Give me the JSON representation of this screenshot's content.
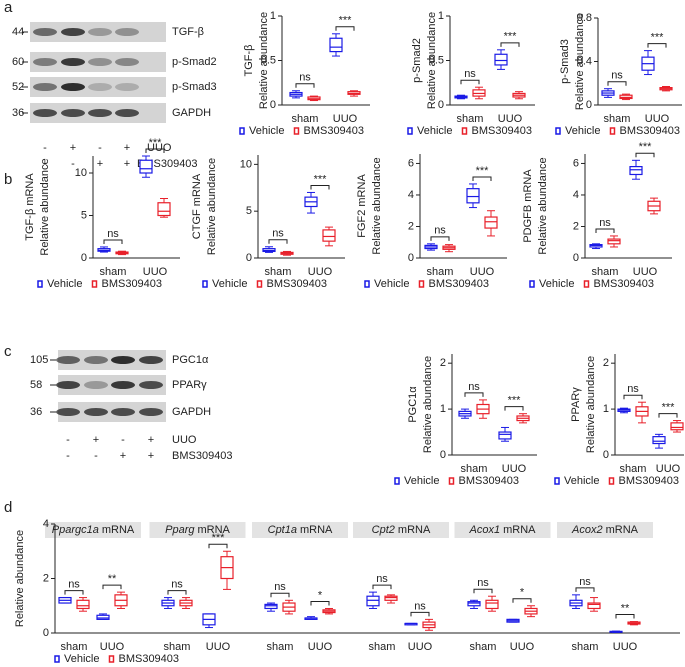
{
  "panel_labels": [
    "a",
    "b",
    "c",
    "d"
  ],
  "blots": [
    {
      "markers": [
        44,
        60,
        52,
        36
      ],
      "proteins": [
        "TGF-β",
        "p-Smad2",
        "p-Smad3",
        "GAPDH"
      ],
      "conditions": [
        {
          "name": "UUO",
          "signs": [
            "-",
            "+",
            "-",
            "+"
          ]
        },
        {
          "name": "BMS309403",
          "signs": [
            "-",
            "-",
            "+",
            "+"
          ]
        }
      ]
    },
    {
      "markers": [
        105,
        58,
        36
      ],
      "proteins": [
        "PGC1α",
        "PPARγ",
        "GAPDH"
      ],
      "conditions": [
        {
          "name": "UUO",
          "signs": [
            "-",
            "+",
            "-",
            "+"
          ]
        },
        {
          "name": "BMS309403",
          "signs": [
            "-",
            "-",
            "+",
            "+"
          ]
        }
      ]
    }
  ],
  "chart_data": [
    {
      "type": "box",
      "ylabel": [
        "TGF-β",
        "Relative abundance"
      ],
      "categories": [
        "sham",
        "UUO"
      ],
      "ylim": [
        0,
        1
      ],
      "yticks": [
        0,
        0.5,
        1
      ],
      "significance": [
        "ns",
        "***"
      ],
      "series": [
        {
          "name": "Vehicle",
          "color": "#1a1ae6",
          "min": [
            0.08,
            0.55
          ],
          "q1": [
            0.1,
            0.6
          ],
          "median": [
            0.12,
            0.65
          ],
          "q3": [
            0.14,
            0.75
          ],
          "max": [
            0.16,
            0.8
          ]
        },
        {
          "name": "BMS309403",
          "color": "#e8202a",
          "min": [
            0.05,
            0.1
          ],
          "q1": [
            0.06,
            0.12
          ],
          "median": [
            0.07,
            0.13
          ],
          "q3": [
            0.09,
            0.15
          ],
          "max": [
            0.1,
            0.16
          ]
        }
      ]
    },
    {
      "type": "box",
      "ylabel": [
        "p-Smad2",
        "Relative abundance"
      ],
      "categories": [
        "sham",
        "UUO"
      ],
      "ylim": [
        0,
        1
      ],
      "yticks": [
        0,
        0.5,
        1
      ],
      "significance": [
        "ns",
        "***"
      ],
      "series": [
        {
          "name": "Vehicle",
          "color": "#1a1ae6",
          "min": [
            0.07,
            0.4
          ],
          "q1": [
            0.08,
            0.45
          ],
          "median": [
            0.09,
            0.5
          ],
          "q3": [
            0.1,
            0.57
          ],
          "max": [
            0.11,
            0.62
          ]
        },
        {
          "name": "BMS309403",
          "color": "#e8202a",
          "min": [
            0.07,
            0.07
          ],
          "q1": [
            0.1,
            0.09
          ],
          "median": [
            0.13,
            0.11
          ],
          "q3": [
            0.17,
            0.13
          ],
          "max": [
            0.2,
            0.15
          ]
        }
      ]
    },
    {
      "type": "box",
      "ylabel": [
        "p-Smad3",
        "Relative abundance"
      ],
      "categories": [
        "sham",
        "UUO"
      ],
      "ylim": [
        0,
        0.8
      ],
      "yticks": [
        0,
        0.4,
        0.8
      ],
      "significance": [
        "ns",
        "***"
      ],
      "series": [
        {
          "name": "Vehicle",
          "color": "#1a1ae6",
          "min": [
            0.07,
            0.28
          ],
          "q1": [
            0.09,
            0.32
          ],
          "median": [
            0.11,
            0.38
          ],
          "q3": [
            0.13,
            0.44
          ],
          "max": [
            0.15,
            0.5
          ]
        },
        {
          "name": "BMS309403",
          "color": "#e8202a",
          "min": [
            0.05,
            0.13
          ],
          "q1": [
            0.06,
            0.14
          ],
          "median": [
            0.07,
            0.15
          ],
          "q3": [
            0.09,
            0.16
          ],
          "max": [
            0.1,
            0.17
          ]
        }
      ]
    },
    {
      "type": "box",
      "ylabel": [
        "TGF-β mRNA",
        "Relative abundance"
      ],
      "categories": [
        "sham",
        "UUO"
      ],
      "ylim": [
        0,
        12
      ],
      "yticks": [
        0,
        5,
        10
      ],
      "significance": [
        "ns",
        "***"
      ],
      "series": [
        {
          "name": "Vehicle",
          "color": "#1a1ae6",
          "min": [
            0.7,
            9.5
          ],
          "q1": [
            0.8,
            10
          ],
          "median": [
            0.9,
            10.5
          ],
          "q3": [
            1.1,
            11.5
          ],
          "max": [
            1.3,
            12
          ]
        },
        {
          "name": "BMS309403",
          "color": "#e8202a",
          "min": [
            0.4,
            4.8
          ],
          "q1": [
            0.5,
            5
          ],
          "median": [
            0.6,
            5.5
          ],
          "q3": [
            0.7,
            6.5
          ],
          "max": [
            0.8,
            7
          ]
        }
      ]
    },
    {
      "type": "box",
      "ylabel": [
        "CTGF mRNA",
        "Relative abundance"
      ],
      "categories": [
        "sham",
        "UUO"
      ],
      "ylim": [
        0,
        11
      ],
      "yticks": [
        0,
        5,
        10
      ],
      "significance": [
        "ns",
        "***"
      ],
      "series": [
        {
          "name": "Vehicle",
          "color": "#1a1ae6",
          "min": [
            0.6,
            4.8
          ],
          "q1": [
            0.7,
            5.5
          ],
          "median": [
            0.8,
            6
          ],
          "q3": [
            1,
            6.5
          ],
          "max": [
            1.2,
            7
          ]
        },
        {
          "name": "BMS309403",
          "color": "#e8202a",
          "min": [
            0.3,
            1.3
          ],
          "q1": [
            0.4,
            1.8
          ],
          "median": [
            0.5,
            2.3
          ],
          "q3": [
            0.6,
            3
          ],
          "max": [
            0.7,
            3.3
          ]
        }
      ]
    },
    {
      "type": "box",
      "ylabel": [
        "FGF2 mRNA",
        "Relative abundance"
      ],
      "categories": [
        "sham",
        "UUO"
      ],
      "ylim": [
        0,
        6.6
      ],
      "yticks": [
        0,
        2,
        4,
        6
      ],
      "significance": [
        "ns",
        "***"
      ],
      "series": [
        {
          "name": "Vehicle",
          "color": "#1a1ae6",
          "min": [
            0.5,
            3.2
          ],
          "q1": [
            0.6,
            3.5
          ],
          "median": [
            0.7,
            3.9
          ],
          "q3": [
            0.8,
            4.4
          ],
          "max": [
            0.9,
            4.7
          ]
        },
        {
          "name": "BMS309403",
          "color": "#e8202a",
          "min": [
            0.4,
            1.4
          ],
          "q1": [
            0.55,
            1.9
          ],
          "median": [
            0.65,
            2.3
          ],
          "q3": [
            0.75,
            2.6
          ],
          "max": [
            0.85,
            3
          ]
        }
      ]
    },
    {
      "type": "box",
      "ylabel": [
        "PDGFB mRNA",
        "Relative abundance"
      ],
      "categories": [
        "sham",
        "UUO"
      ],
      "ylim": [
        0,
        6.6
      ],
      "yticks": [
        0,
        2,
        4,
        6
      ],
      "significance": [
        "ns",
        "***"
      ],
      "series": [
        {
          "name": "Vehicle",
          "color": "#1a1ae6",
          "min": [
            0.6,
            5
          ],
          "q1": [
            0.7,
            5.3
          ],
          "median": [
            0.8,
            5.6
          ],
          "q3": [
            0.85,
            5.8
          ],
          "max": [
            0.9,
            6.2
          ]
        },
        {
          "name": "BMS309403",
          "color": "#e8202a",
          "min": [
            0.7,
            2.8
          ],
          "q1": [
            0.9,
            3
          ],
          "median": [
            1.1,
            3.3
          ],
          "q3": [
            1.2,
            3.6
          ],
          "max": [
            1.4,
            3.8
          ]
        }
      ]
    },
    {
      "type": "box",
      "ylabel": [
        "PGC1α",
        "Relative abundance"
      ],
      "categories": [
        "sham",
        "UUO"
      ],
      "ylim": [
        0,
        2.2
      ],
      "yticks": [
        0,
        1,
        2
      ],
      "significance": [
        "ns",
        "***"
      ],
      "series": [
        {
          "name": "Vehicle",
          "color": "#1a1ae6",
          "min": [
            0.8,
            0.3
          ],
          "q1": [
            0.85,
            0.35
          ],
          "median": [
            0.9,
            0.45
          ],
          "q3": [
            0.95,
            0.5
          ],
          "max": [
            1,
            0.6
          ]
        },
        {
          "name": "BMS309403",
          "color": "#e8202a",
          "min": [
            0.8,
            0.7
          ],
          "q1": [
            0.9,
            0.75
          ],
          "median": [
            1,
            0.8
          ],
          "q3": [
            1.1,
            0.85
          ],
          "max": [
            1.2,
            0.9
          ]
        }
      ]
    },
    {
      "type": "box",
      "ylabel": [
        "PPARγ",
        "Relative abundance"
      ],
      "categories": [
        "sham",
        "UUO"
      ],
      "ylim": [
        0,
        2.2
      ],
      "yticks": [
        0,
        1,
        2
      ],
      "significance": [
        "ns",
        "***"
      ],
      "series": [
        {
          "name": "Vehicle",
          "color": "#1a1ae6",
          "min": [
            0.92,
            0.15
          ],
          "q1": [
            0.95,
            0.25
          ],
          "median": [
            0.98,
            0.3
          ],
          "q3": [
            1,
            0.4
          ],
          "max": [
            1.02,
            0.45
          ]
        },
        {
          "name": "BMS309403",
          "color": "#e8202a",
          "min": [
            0.7,
            0.5
          ],
          "q1": [
            0.85,
            0.55
          ],
          "median": [
            0.95,
            0.6
          ],
          "q3": [
            1.05,
            0.7
          ],
          "max": [
            1.15,
            0.75
          ]
        }
      ]
    },
    {
      "type": "box",
      "ylabel": [
        "Relative abundance"
      ],
      "groups": [
        {
          "gene": "Ppargc1a",
          "unit": "mRNA"
        },
        {
          "gene": "Pparg",
          "unit": "mRNA"
        },
        {
          "gene": "Cpt1a",
          "unit": "mRNA"
        },
        {
          "gene": "Cpt2",
          "unit": "mRNA"
        },
        {
          "gene": "Acox1",
          "unit": "mRNA"
        },
        {
          "gene": "Acox2",
          "unit": "mRNA"
        }
      ],
      "categories": [
        "sham",
        "UUO",
        "sham",
        "UUO",
        "sham",
        "UUO",
        "sham",
        "UUO",
        "sham",
        "UUO",
        "sham",
        "UUO"
      ],
      "ylim": [
        0,
        4
      ],
      "yticks": [
        0,
        2,
        4
      ],
      "significance": [
        "ns",
        "**",
        "ns",
        "***",
        "ns",
        "*",
        "ns",
        "ns",
        "ns",
        "*",
        "ns",
        "**"
      ],
      "series": [
        {
          "name": "Vehicle",
          "color": "#1a1ae6",
          "min": [
            1.1,
            0.5,
            0.9,
            0.2,
            0.8,
            0.5,
            0.9,
            0.3,
            0.9,
            0.4,
            0.9,
            0.02
          ],
          "q1": [
            1.1,
            0.5,
            1,
            0.3,
            0.9,
            0.5,
            1,
            0.3,
            1,
            0.4,
            1,
            0.03
          ],
          "median": [
            1.2,
            0.55,
            1.1,
            0.5,
            1,
            0.55,
            1.2,
            0.35,
            1.1,
            0.45,
            1.1,
            0.05
          ],
          "q3": [
            1.3,
            0.65,
            1.2,
            0.7,
            1.05,
            0.55,
            1.35,
            0.35,
            1.15,
            0.5,
            1.2,
            0.06
          ],
          "max": [
            1.3,
            0.7,
            1.3,
            0.7,
            1.1,
            0.6,
            1.5,
            0.35,
            1.2,
            0.5,
            1.4,
            0.07
          ]
        },
        {
          "name": "BMS309403",
          "color": "#e8202a",
          "min": [
            0.8,
            0.9,
            0.9,
            1.6,
            0.7,
            0.7,
            1.1,
            0.1,
            0.8,
            0.6,
            0.8,
            0.3
          ],
          "q1": [
            0.9,
            1,
            1,
            2,
            0.8,
            0.75,
            1.2,
            0.2,
            0.9,
            0.7,
            0.9,
            0.33
          ],
          "median": [
            1,
            1.2,
            1.1,
            2.4,
            0.95,
            0.8,
            1.3,
            0.3,
            1.1,
            0.8,
            1.05,
            0.36
          ],
          "q3": [
            1.2,
            1.4,
            1.2,
            2.8,
            1.1,
            0.85,
            1.35,
            0.4,
            1.2,
            0.9,
            1.1,
            0.4
          ],
          "max": [
            1.3,
            1.5,
            1.3,
            3,
            1.2,
            0.9,
            1.4,
            0.5,
            1.35,
            1,
            1.3,
            0.42
          ]
        }
      ]
    }
  ]
}
